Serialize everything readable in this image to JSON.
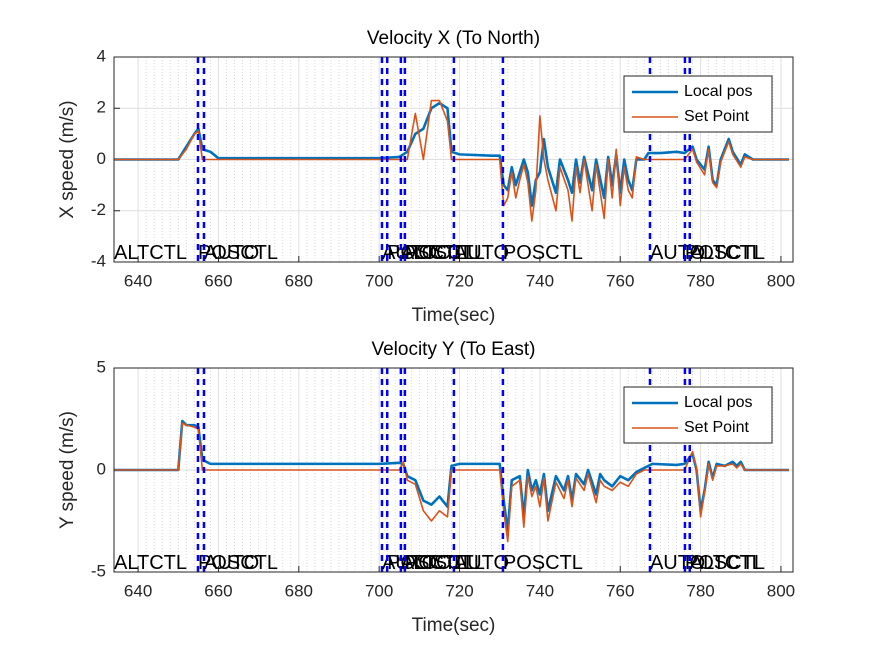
{
  "chart_data": [
    {
      "type": "line",
      "title": "Velocity X (To North)",
      "x_label": "Time(sec)",
      "y_label": "X speed (m/s)",
      "xlim": [
        634,
        803
      ],
      "xticks": [
        640,
        660,
        680,
        700,
        720,
        740,
        760,
        780,
        800
      ],
      "ylim": [
        -4,
        4
      ],
      "yticks": [
        -4,
        -2,
        0,
        2,
        4
      ],
      "grid": true,
      "minor_grid": true,
      "legend": "northeast",
      "x": [
        634,
        650,
        652,
        654,
        655,
        656,
        658,
        660,
        700,
        705,
        707,
        709,
        711,
        713,
        715,
        717,
        718,
        720,
        728,
        730,
        731,
        732,
        733,
        734,
        735,
        736,
        737,
        738,
        739,
        740,
        741,
        742,
        744,
        745,
        747,
        748,
        749,
        750,
        751,
        753,
        754,
        756,
        757,
        758,
        759,
        760,
        761,
        762,
        763,
        764,
        766,
        767,
        770,
        774,
        776,
        778,
        779,
        781,
        782,
        783,
        784,
        785,
        787,
        788,
        790,
        791,
        793,
        802
      ],
      "series": [
        {
          "name": "Local pos",
          "color": "#0072bd",
          "values": [
            0,
            0,
            0.5,
            1.0,
            1.2,
            0.4,
            0.3,
            0.05,
            0.05,
            0.1,
            0.3,
            1.0,
            1.2,
            2.0,
            2.2,
            2.0,
            0.3,
            0.2,
            0.15,
            0.15,
            -1.0,
            -1.2,
            -0.3,
            -1.0,
            -0.5,
            0,
            -0.5,
            -1.8,
            -0.8,
            -0.5,
            0.8,
            -0.3,
            -1.3,
            0,
            -0.8,
            -1.3,
            0,
            -0.9,
            0.1,
            -1.2,
            0,
            -1.5,
            0.1,
            -1.0,
            0.2,
            -1.3,
            0,
            -0.8,
            -1.2,
            0,
            0,
            0.25,
            0.25,
            0.3,
            0.25,
            0.5,
            0,
            -0.4,
            0.5,
            -0.8,
            -1.0,
            0,
            0.8,
            0.3,
            -0.2,
            0.2,
            0,
            0
          ]
        },
        {
          "name": "Set Point",
          "color": "#d95319",
          "values": [
            0,
            0,
            0.4,
            1.0,
            1.1,
            0,
            0,
            0,
            0,
            0,
            0,
            1.8,
            0,
            2.3,
            2.3,
            1.5,
            0,
            0,
            0,
            0,
            -1.8,
            -1.5,
            -0.5,
            -1.5,
            -0.8,
            -0.2,
            -0.9,
            -2.4,
            -1.2,
            1.7,
            0,
            -0.8,
            -2.0,
            -0.3,
            -1.2,
            -2.4,
            -0.3,
            -1.3,
            0,
            -2.0,
            -0.2,
            -2.3,
            0,
            -1.5,
            0.4,
            -1.8,
            -0.3,
            -1.2,
            -1.5,
            0.1,
            0,
            0,
            0,
            0,
            0,
            0.4,
            -0.1,
            -0.6,
            0.4,
            -0.9,
            -1.1,
            -0.1,
            0.7,
            0.2,
            -0.3,
            0.1,
            0,
            0
          ]
        }
      ],
      "initial_mode": "ALTCTL",
      "mode_changes": {
        "x": [
          654.9,
          656.4,
          700.7,
          702,
          705.4,
          706.4,
          718.6,
          730.8,
          767.4,
          776.1,
          777.3
        ],
        "labels": [
          "POSCTL",
          "AUTO",
          "AUTO",
          "POSCTL",
          "ALTCTL",
          "POSCTL",
          "AUTO",
          "POSCTL",
          "AUTO",
          "POSCTL",
          "ALTCTL"
        ],
        "color": "#0000ff"
      }
    },
    {
      "type": "line",
      "title": "Velocity Y (To East)",
      "x_label": "Time(sec)",
      "y_label": "Y speed (m/s)",
      "xlim": [
        634,
        803
      ],
      "xticks": [
        640,
        660,
        680,
        700,
        720,
        740,
        760,
        780,
        800
      ],
      "ylim": [
        -5,
        5
      ],
      "yticks": [
        -5,
        0,
        5
      ],
      "grid": true,
      "minor_grid": true,
      "legend": "northeast",
      "x": [
        634,
        650,
        651,
        652,
        654,
        655,
        656,
        658,
        700,
        705,
        706,
        707,
        709,
        711,
        713,
        715,
        717,
        718,
        720,
        730,
        731,
        732,
        733,
        735,
        736,
        737,
        738,
        739,
        740,
        741,
        742,
        744,
        746,
        747,
        748,
        749,
        751,
        752,
        754,
        755,
        756,
        758,
        760,
        762,
        764,
        766,
        768,
        774,
        776,
        778,
        779,
        780,
        781,
        782,
        783,
        784,
        786,
        788,
        789,
        790,
        791,
        802
      ],
      "series": [
        {
          "name": "Local pos",
          "color": "#0072bd",
          "values": [
            0,
            0,
            2.4,
            2.2,
            2.2,
            2.1,
            0.5,
            0.3,
            0.3,
            0.35,
            0.3,
            -0.3,
            -0.5,
            -1.5,
            -1.7,
            -1.3,
            -1.8,
            0.2,
            0.3,
            0.3,
            -1.5,
            -3.0,
            -0.5,
            -0.3,
            -2.3,
            0,
            -1.0,
            -0.5,
            -1.2,
            -0.2,
            -2.0,
            -0.3,
            -1.0,
            -0.3,
            -1.5,
            -0.2,
            -0.7,
            0,
            -1.2,
            -0.2,
            -0.5,
            -0.8,
            -0.3,
            -0.5,
            -0.1,
            0.1,
            0.3,
            0.25,
            0.3,
            0.8,
            0,
            -2.0,
            -1.0,
            0.4,
            -0.4,
            0.3,
            0.2,
            0.4,
            0.2,
            0.4,
            0,
            0
          ]
        },
        {
          "name": "Set Point",
          "color": "#d95319",
          "values": [
            0,
            0,
            2.3,
            2.2,
            2.1,
            2.0,
            0,
            0,
            0,
            0,
            0.4,
            -0.5,
            -0.7,
            -2.0,
            -2.5,
            -2.0,
            -2.3,
            0,
            0,
            0,
            -2.0,
            -3.5,
            -0.8,
            -0.5,
            -2.8,
            -0.3,
            -1.3,
            -0.8,
            -1.8,
            -0.4,
            -2.5,
            -0.6,
            -1.4,
            -0.5,
            -1.8,
            -0.4,
            -1.0,
            -0.2,
            -1.6,
            -0.5,
            -0.8,
            -1.0,
            -0.6,
            -0.8,
            -0.2,
            0,
            0,
            0,
            0,
            0.9,
            0.1,
            -2.3,
            -1.1,
            0.3,
            -0.5,
            0.2,
            0.2,
            0.3,
            0.1,
            0.3,
            0,
            0
          ]
        }
      ],
      "initial_mode": "ALTCTL",
      "mode_changes": {
        "x": [
          654.9,
          656.4,
          700.7,
          702,
          705.4,
          706.4,
          718.6,
          730.8,
          767.4,
          776.1,
          777.3
        ],
        "labels": [
          "POSCTL",
          "AUTO",
          "AUTO",
          "POSCTL",
          "ALTCTL",
          "POSCTL",
          "AUTO",
          "POSCTL",
          "AUTO",
          "POSCTL",
          "ALTCTL"
        ],
        "color": "#0000ff"
      }
    }
  ]
}
